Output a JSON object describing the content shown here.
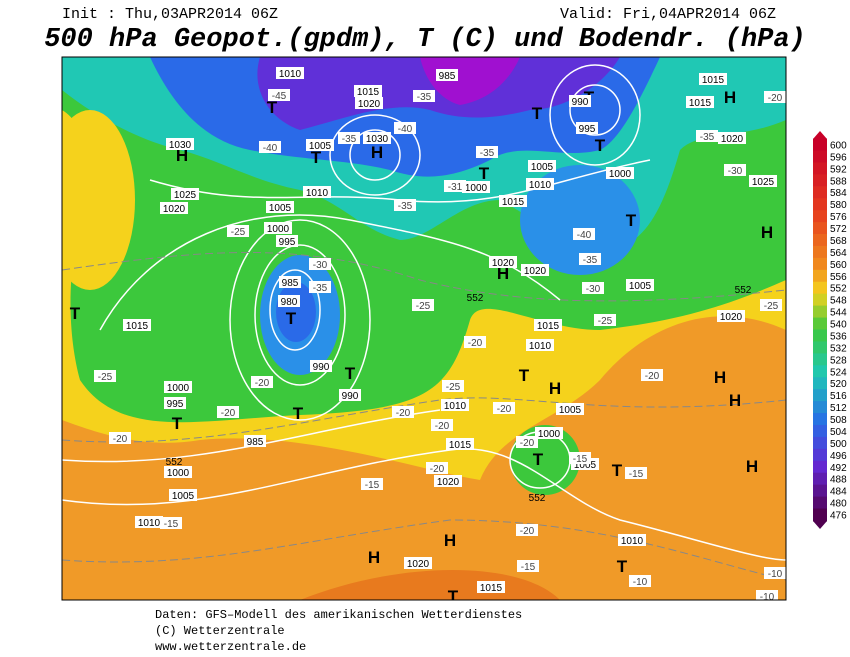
{
  "header": {
    "init": "Init : Thu,03APR2014 06Z",
    "valid": "Valid: Fri,04APR2014 06Z",
    "title": "500 hPa Geopot.(gpdm), T (C) und Bodendr. (hPa)"
  },
  "colorbar": {
    "values": [
      600,
      596,
      592,
      588,
      584,
      580,
      576,
      572,
      568,
      564,
      560,
      556,
      552,
      548,
      544,
      540,
      536,
      532,
      528,
      524,
      520,
      516,
      512,
      508,
      504,
      500,
      496,
      492,
      488,
      484,
      480,
      476
    ]
  },
  "map": {
    "pressure_centers": [
      "H",
      "H",
      "H",
      "H",
      "H",
      "H",
      "H",
      "H",
      "H",
      "H",
      "H",
      "T",
      "T",
      "T",
      "T",
      "T",
      "T",
      "T",
      "T",
      "T",
      "T",
      "T",
      "T",
      "T",
      "T",
      "T",
      "T",
      "T"
    ],
    "isobar_labels": [
      "1010",
      "985",
      "1030",
      "1025",
      "1020",
      "1005",
      "1000",
      "995",
      "985",
      "980",
      "990",
      "990",
      "1015",
      "1000",
      "995",
      "985",
      "1000",
      "1005",
      "1010",
      "1015",
      "1020",
      "1030",
      "1005",
      "1010",
      "1000",
      "1005",
      "1010",
      "1015",
      "1020",
      "1020",
      "1015",
      "1010",
      "1010",
      "1015",
      "1020",
      "1000",
      "1005",
      "1005",
      "1020",
      "1015",
      "1010",
      "1000",
      "1005",
      "995",
      "990",
      "1015",
      "1015",
      "1020",
      "1025",
      "1020"
    ],
    "isotherm_labels": [
      "-45",
      "-40",
      "-35",
      "-40",
      "-35",
      "-35",
      "-31",
      "-35",
      "-25",
      "-30",
      "-35",
      "-25",
      "-20",
      "-25",
      "-20",
      "-20",
      "-20",
      "-25",
      "-20",
      "-20",
      "-20",
      "-15",
      "-15",
      "-20",
      "-20",
      "-15",
      "-15",
      "-10",
      "-10",
      "-10",
      "-25",
      "-20",
      "-30",
      "-35",
      "-40",
      "-35",
      "-30",
      "-20",
      "-25",
      "-15",
      "-20"
    ],
    "height_labels": [
      "552",
      "552",
      "552",
      "552"
    ]
  },
  "footer": [
    "Daten: GFS–Modell des amerikanischen Wetterdienstes",
    "(C) Wetterzentrale",
    "www.wetterzentrale.de"
  ]
}
